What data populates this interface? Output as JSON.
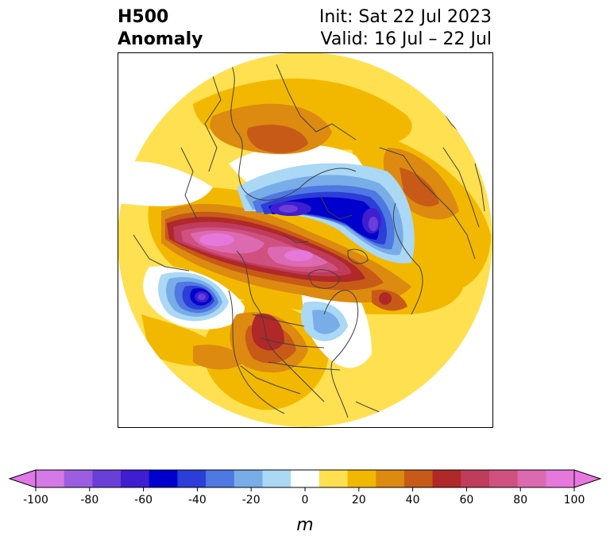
{
  "title": {
    "left_line1": "H500",
    "left_line2": "Anomaly",
    "right_line1": "Init: Sat 22 Jul 2023",
    "right_line2": "Valid: 16 Jul – 22 Jul"
  },
  "map": {
    "projection": "north-polar-stereographic",
    "field": "500 hPa geopotential height anomaly",
    "features": [
      {
        "name": "positive-anomaly-band-pacific-to-pole",
        "peak_m": 90
      },
      {
        "name": "positive-anomaly-western-north-america",
        "peak_m": 60
      },
      {
        "name": "positive-anomaly-northern-asia",
        "peak_m": 40
      },
      {
        "name": "positive-anomaly-eastern-europe",
        "peak_m": 40
      },
      {
        "name": "negative-anomaly-arctic-siberia",
        "peak_m": -70
      },
      {
        "name": "negative-anomaly-northeast-pacific",
        "peak_m": -80
      },
      {
        "name": "negative-anomaly-hudson-bay",
        "peak_m": -30
      }
    ]
  },
  "colorbar": {
    "unit_label": "m",
    "ticks": [
      "-100",
      "-80",
      "-60",
      "-40",
      "-20",
      "0",
      "20",
      "40",
      "60",
      "80",
      "100"
    ],
    "bounds": [
      -100,
      -90,
      -80,
      -70,
      -60,
      -50,
      -40,
      -30,
      -20,
      -10,
      10,
      20,
      30,
      40,
      50,
      60,
      70,
      80,
      90,
      100
    ],
    "colors": [
      "#d47ae6",
      "#9b5ee0",
      "#6a3fd8",
      "#3f1dd0",
      "#0000cc",
      "#2b3ed8",
      "#4f78e2",
      "#78ade8",
      "#aad8f5",
      "#ffffff",
      "#ffe050",
      "#f2b800",
      "#dd8a10",
      "#c85a18",
      "#b02828",
      "#c03c5c",
      "#d05080",
      "#dc6ab0",
      "#e678dc"
    ],
    "under_color": "#e078e8",
    "over_color": "#e878e0",
    "extend": "both"
  }
}
